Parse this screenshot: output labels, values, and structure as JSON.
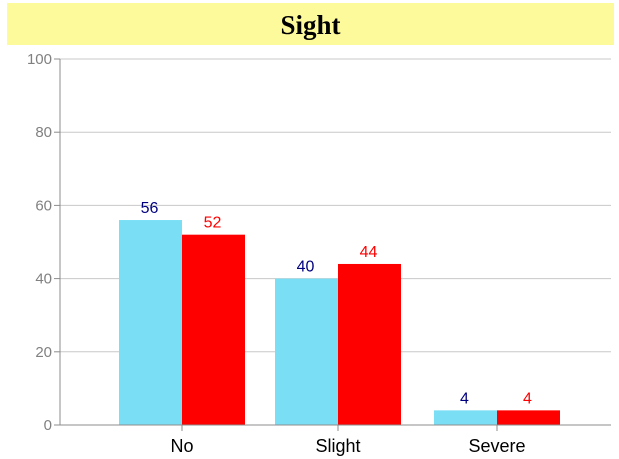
{
  "chart_data": {
    "type": "bar",
    "title": "Sight",
    "categories": [
      "No",
      "Slight",
      "Severe"
    ],
    "series": [
      {
        "values": [
          56,
          40,
          4
        ],
        "color": "#7adff5",
        "label_color": "#00007f"
      },
      {
        "values": [
          52,
          44,
          4
        ],
        "color": "#ff0000",
        "label_color": "#ff0000"
      }
    ],
    "ylim": [
      0,
      100
    ],
    "yticks": [
      0,
      20,
      40,
      60,
      80,
      100
    ],
    "grid": true,
    "title_background": "#fdfa9c"
  }
}
